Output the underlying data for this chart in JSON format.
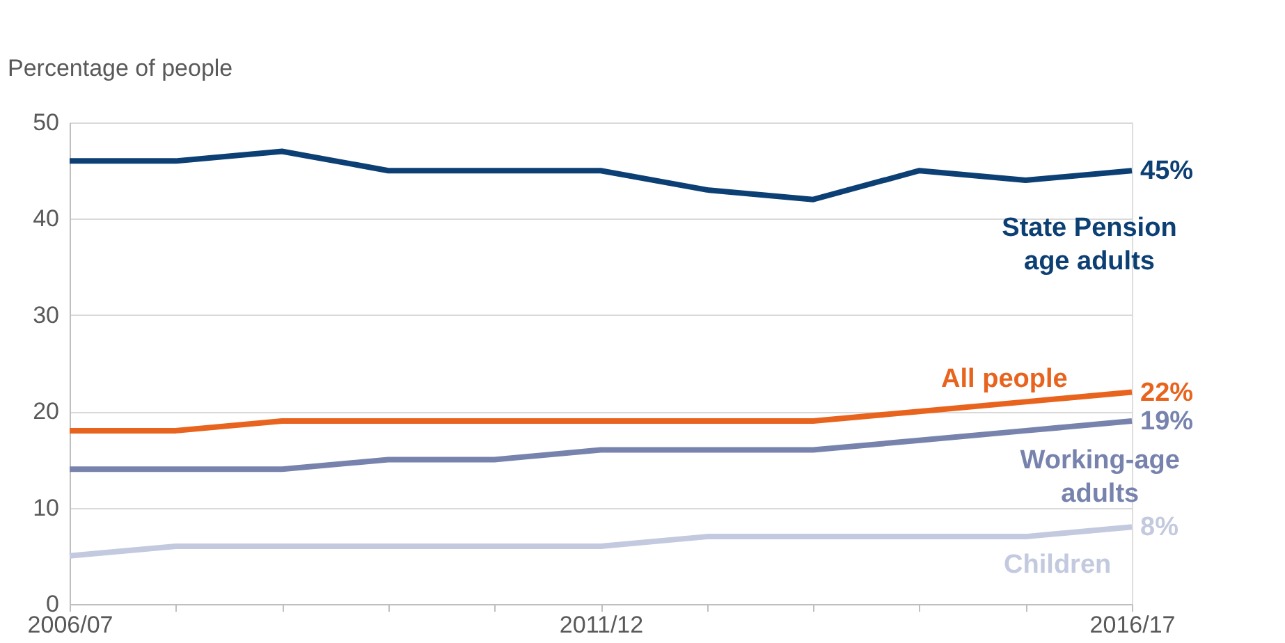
{
  "chart_data": {
    "type": "line",
    "ylabel": "Percentage of people",
    "categories": [
      "2006/07",
      null,
      null,
      null,
      null,
      "2011/12",
      null,
      null,
      null,
      null,
      "2016/17"
    ],
    "ylim": [
      0,
      50
    ],
    "yticks": [
      0,
      10,
      20,
      30,
      40,
      50
    ],
    "grid": "y",
    "marker": "none",
    "line_style": "solid",
    "series": [
      {
        "name": "State Pension\nage adults",
        "color": "#0c3f73",
        "values": [
          46,
          46,
          47,
          45,
          45,
          45,
          43,
          42,
          45,
          44,
          45
        ],
        "value_labels": [
          null,
          null,
          null,
          null,
          null,
          null,
          null,
          null,
          null,
          null,
          "45%"
        ]
      },
      {
        "name": "All people",
        "color": "#e8641e",
        "values": [
          18,
          18,
          19,
          19,
          19,
          19,
          19,
          19,
          20,
          21,
          22
        ],
        "value_labels": [
          null,
          null,
          null,
          null,
          null,
          null,
          null,
          null,
          null,
          null,
          "22%"
        ]
      },
      {
        "name": "Working-age\nadults",
        "color": "#7783ad",
        "values": [
          14,
          14,
          14,
          15,
          15,
          16,
          16,
          16,
          17,
          18,
          19
        ],
        "value_labels": [
          null,
          null,
          null,
          null,
          null,
          null,
          null,
          null,
          null,
          null,
          "19%"
        ]
      },
      {
        "name": "Children",
        "color": "#c3c9de",
        "values": [
          5,
          6,
          6,
          6,
          6,
          6,
          7,
          7,
          7,
          7,
          8
        ],
        "value_labels": [
          null,
          null,
          null,
          null,
          null,
          null,
          null,
          null,
          null,
          null,
          "8%"
        ]
      }
    ]
  }
}
